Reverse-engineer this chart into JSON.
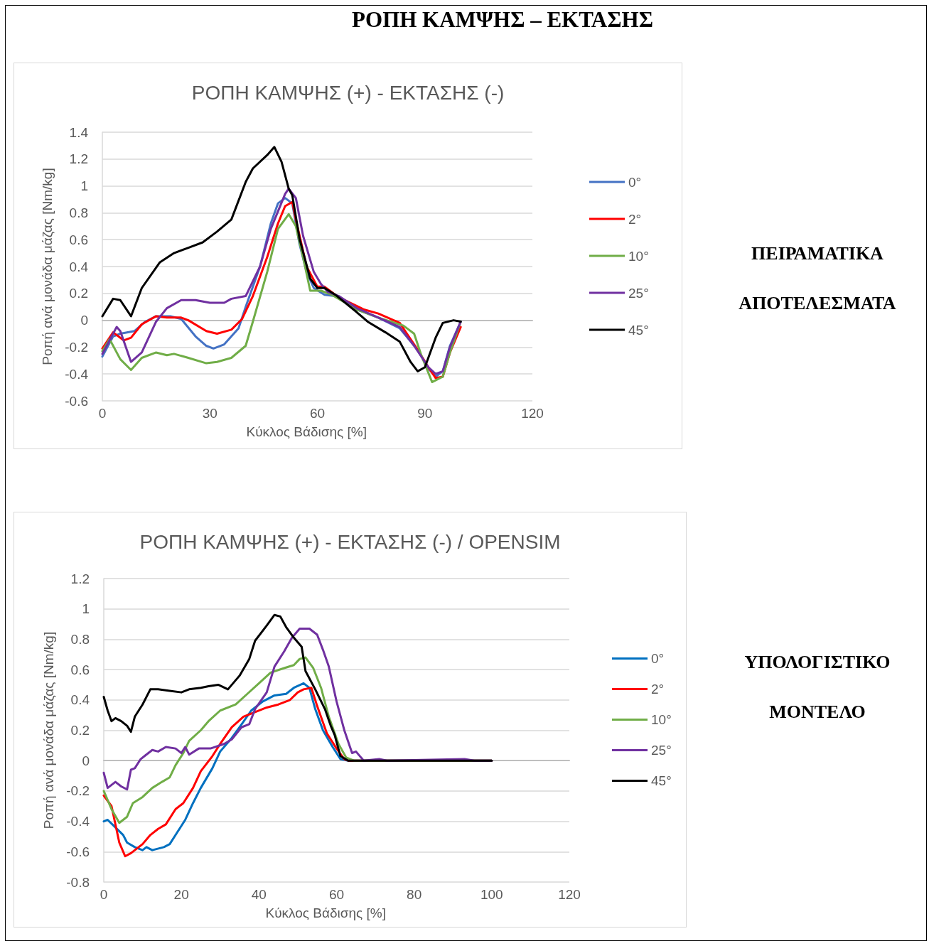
{
  "chart_data": [
    {
      "type": "line",
      "title": "ΡΟΠΗ ΚΑΜΨΗΣ (+) - ΕΚΤΑΣΗΣ (-)",
      "xlabel": "Κύκλος Βάδισης [%]",
      "ylabel": "Ροπή ανά μονάδα μάζας [Nm/kg]",
      "annotations": [
        "ΡΟΠΗ ΚΑΜΨΗΣ – ΕΚΤΑΣΗΣ",
        "ΠΕΙΡΑΜΑΤΙΚΑ ΑΠΟΤΕΛΕΣΜΑΤΑ"
      ],
      "xlim": [
        0,
        120
      ],
      "xticks": [
        0,
        30,
        60,
        90,
        120
      ],
      "ylim": [
        -0.6,
        1.4
      ],
      "yticks": [
        -0.6,
        -0.4,
        -0.2,
        0,
        0.2,
        0.4,
        0.6,
        0.8,
        1,
        1.2,
        1.4
      ],
      "grid": "y",
      "legend": "right",
      "line_style": "solid",
      "series": [
        {
          "name": "0°",
          "color": "#4472c4",
          "x": [
            0,
            3,
            5,
            9,
            12,
            15,
            19,
            22,
            26,
            29,
            31,
            34,
            38,
            40,
            44,
            47,
            49,
            51,
            53,
            55,
            57,
            59,
            62,
            65,
            71,
            77,
            83,
            88,
            91,
            93,
            95,
            97,
            100
          ],
          "values": [
            -0.27,
            -0.12,
            -0.1,
            -0.08,
            -0.01,
            0.03,
            0.03,
            0.01,
            -0.12,
            -0.19,
            -0.21,
            -0.18,
            -0.06,
            0.1,
            0.4,
            0.72,
            0.87,
            0.91,
            0.87,
            0.57,
            0.36,
            0.24,
            0.19,
            0.18,
            0.08,
            0.02,
            -0.06,
            -0.22,
            -0.36,
            -0.42,
            -0.38,
            -0.19,
            -0.01
          ]
        },
        {
          "name": "2°",
          "color": "#ff0000",
          "x": [
            0,
            3,
            6,
            8,
            11,
            15,
            18,
            22,
            24,
            29,
            32,
            36,
            39,
            42,
            46,
            49,
            51,
            53,
            54,
            57,
            60,
            62,
            66,
            73,
            77,
            83,
            85,
            88,
            91,
            93,
            95,
            97,
            100
          ],
          "values": [
            -0.21,
            -0.09,
            -0.15,
            -0.13,
            -0.03,
            0.03,
            0.02,
            0.02,
            0,
            -0.08,
            -0.1,
            -0.07,
            0.01,
            0.18,
            0.47,
            0.72,
            0.85,
            0.88,
            0.75,
            0.4,
            0.25,
            0.25,
            0.17,
            0.08,
            0.05,
            -0.02,
            -0.1,
            -0.22,
            -0.35,
            -0.43,
            -0.42,
            -0.24,
            -0.05
          ]
        },
        {
          "name": "10°",
          "color": "#70ad47",
          "x": [
            0,
            2,
            5,
            8,
            11,
            15,
            18,
            20,
            24,
            29,
            32,
            36,
            40,
            42,
            46,
            49,
            52,
            54,
            56,
            58,
            61,
            64,
            71,
            77,
            84,
            87,
            89,
            92,
            95,
            97,
            100
          ],
          "values": [
            -0.23,
            -0.14,
            -0.29,
            -0.37,
            -0.28,
            -0.24,
            -0.26,
            -0.25,
            -0.28,
            -0.32,
            -0.31,
            -0.28,
            -0.19,
            -0.01,
            0.36,
            0.68,
            0.79,
            0.7,
            0.47,
            0.22,
            0.22,
            0.19,
            0.08,
            0.02,
            -0.04,
            -0.1,
            -0.26,
            -0.46,
            -0.42,
            -0.24,
            -0.01
          ]
        },
        {
          "name": "25°",
          "color": "#7030a0",
          "x": [
            0,
            4,
            5,
            8,
            11,
            15,
            18,
            22,
            26,
            30,
            34,
            36,
            40,
            44,
            47,
            51,
            52,
            54,
            56,
            59,
            61,
            63,
            66,
            71,
            77,
            83,
            87,
            91,
            93,
            95,
            97,
            100
          ],
          "values": [
            -0.25,
            -0.05,
            -0.08,
            -0.31,
            -0.24,
            -0.01,
            0.09,
            0.15,
            0.15,
            0.13,
            0.13,
            0.16,
            0.18,
            0.4,
            0.68,
            0.94,
            0.98,
            0.91,
            0.63,
            0.36,
            0.27,
            0.21,
            0.18,
            0.09,
            0.02,
            -0.05,
            -0.19,
            -0.35,
            -0.4,
            -0.38,
            -0.2,
            -0.01
          ]
        },
        {
          "name": "45°",
          "color": "#000000",
          "x": [
            0,
            3,
            5,
            8,
            11,
            16,
            20,
            24,
            28,
            32,
            36,
            40,
            42,
            46,
            48,
            50,
            52,
            53,
            55,
            58,
            60,
            62,
            65,
            71,
            74,
            79,
            83,
            86,
            88,
            90,
            93,
            95,
            98,
            100
          ],
          "values": [
            0.03,
            0.16,
            0.15,
            0.03,
            0.24,
            0.43,
            0.5,
            0.54,
            0.58,
            0.66,
            0.75,
            1.03,
            1.13,
            1.23,
            1.29,
            1.18,
            0.98,
            0.93,
            0.61,
            0.31,
            0.24,
            0.24,
            0.19,
            0.06,
            -0.01,
            -0.09,
            -0.16,
            -0.31,
            -0.38,
            -0.35,
            -0.13,
            -0.02,
            0,
            -0.01
          ]
        }
      ]
    },
    {
      "type": "line",
      "title": "ΡΟΠΗ ΚΑΜΨΗΣ (+) - ΕΚΤΑΣΗΣ (-) / OPENSIM",
      "xlabel": "Κύκλος Βάδισης [%]",
      "ylabel": "Ροπή ανά μονάδα μάζας [Nm/kg]",
      "annotations": [
        "ΥΠΟΛΟΓΙΣΤΙΚΟ ΜΟΝΤΕΛΟ"
      ],
      "xlim": [
        0,
        120
      ],
      "xticks": [
        0,
        20,
        40,
        60,
        80,
        100,
        120
      ],
      "ylim": [
        -0.8,
        1.2
      ],
      "yticks": [
        -0.8,
        -0.6,
        -0.4,
        -0.2,
        0,
        0.2,
        0.4,
        0.6,
        0.8,
        1,
        1.2
      ],
      "grid": "y",
      "legend": "right",
      "line_style": "solid",
      "series": [
        {
          "name": "0°",
          "color": "#0070c0",
          "x": [
            0,
            1,
            3,
            5,
            6,
            8,
            10,
            11,
            12.5,
            15.5,
            17,
            19,
            21,
            23,
            25,
            28,
            30,
            33,
            35,
            38,
            41,
            44,
            47,
            49,
            51.5,
            53,
            54.5,
            56.5,
            59,
            61,
            63,
            100
          ],
          "values": [
            -0.4,
            -0.39,
            -0.44,
            -0.49,
            -0.54,
            -0.57,
            -0.59,
            -0.57,
            -0.59,
            -0.57,
            -0.55,
            -0.47,
            -0.39,
            -0.28,
            -0.18,
            -0.05,
            0.06,
            0.15,
            0.22,
            0.33,
            0.39,
            0.43,
            0.44,
            0.48,
            0.51,
            0.48,
            0.34,
            0.2,
            0.09,
            0.01,
            0,
            0
          ]
        },
        {
          "name": "2°",
          "color": "#ff0000",
          "x": [
            0,
            2,
            4,
            5.5,
            7,
            8,
            10,
            12,
            14,
            16,
            18.5,
            20.5,
            23,
            25,
            28,
            30,
            33,
            36,
            39,
            42,
            45,
            48,
            50,
            51.5,
            53.5,
            55,
            57.5,
            60,
            62,
            63,
            100
          ],
          "values": [
            -0.23,
            -0.3,
            -0.54,
            -0.63,
            -0.61,
            -0.59,
            -0.55,
            -0.49,
            -0.45,
            -0.42,
            -0.32,
            -0.28,
            -0.18,
            -0.07,
            0.03,
            0.11,
            0.22,
            0.29,
            0.32,
            0.35,
            0.37,
            0.4,
            0.45,
            0.47,
            0.48,
            0.36,
            0.18,
            0.08,
            0.01,
            0,
            0
          ]
        },
        {
          "name": "10°",
          "color": "#70ad47",
          "x": [
            0,
            2,
            4,
            6,
            7.5,
            10,
            12.5,
            15,
            17,
            18.5,
            20.5,
            22,
            25,
            27,
            30,
            34,
            37,
            40,
            43,
            46.5,
            49,
            50.5,
            52,
            54,
            56,
            58,
            60.5,
            62.5,
            64.5,
            100
          ],
          "values": [
            -0.2,
            -0.32,
            -0.41,
            -0.37,
            -0.28,
            -0.24,
            -0.18,
            -0.14,
            -0.11,
            -0.03,
            0.05,
            0.13,
            0.2,
            0.26,
            0.33,
            0.37,
            0.44,
            0.51,
            0.58,
            0.61,
            0.63,
            0.67,
            0.68,
            0.61,
            0.48,
            0.29,
            0.11,
            0.02,
            0,
            0
          ]
        },
        {
          "name": "25°",
          "color": "#7030a0",
          "x": [
            0,
            1,
            3,
            4.5,
            6,
            7,
            8,
            9.5,
            10.5,
            12.5,
            14,
            16,
            18.5,
            20,
            21,
            22,
            24.5,
            27.5,
            31,
            33,
            35.5,
            37.5,
            39,
            42,
            44,
            46.5,
            48.5,
            50.5,
            53,
            55,
            56.5,
            58,
            60,
            62,
            64,
            65,
            67,
            71,
            73,
            93,
            95.5,
            100
          ],
          "values": [
            -0.08,
            -0.18,
            -0.14,
            -0.17,
            -0.19,
            -0.06,
            -0.05,
            0.01,
            0.03,
            0.07,
            0.06,
            0.09,
            0.08,
            0.05,
            0.09,
            0.04,
            0.08,
            0.08,
            0.11,
            0.14,
            0.22,
            0.24,
            0.34,
            0.45,
            0.62,
            0.72,
            0.81,
            0.87,
            0.87,
            0.83,
            0.73,
            0.62,
            0.39,
            0.2,
            0.05,
            0.06,
            0,
            0.01,
            0,
            0.01,
            0,
            0
          ]
        },
        {
          "name": "45°",
          "color": "#000000",
          "x": [
            0,
            1,
            2,
            3,
            4.5,
            6,
            7,
            8,
            10,
            12,
            14,
            17,
            20,
            22,
            25,
            27,
            29.5,
            32,
            35,
            37.5,
            39,
            42,
            44,
            45.5,
            47,
            49,
            51,
            52,
            54.5,
            57,
            58.5,
            59.5,
            61,
            63,
            100
          ],
          "values": [
            0.42,
            0.33,
            0.26,
            0.28,
            0.26,
            0.23,
            0.19,
            0.29,
            0.37,
            0.47,
            0.47,
            0.46,
            0.45,
            0.47,
            0.48,
            0.49,
            0.5,
            0.47,
            0.56,
            0.67,
            0.79,
            0.89,
            0.96,
            0.95,
            0.88,
            0.81,
            0.75,
            0.59,
            0.47,
            0.34,
            0.23,
            0.17,
            0.03,
            0,
            0
          ]
        }
      ]
    }
  ]
}
